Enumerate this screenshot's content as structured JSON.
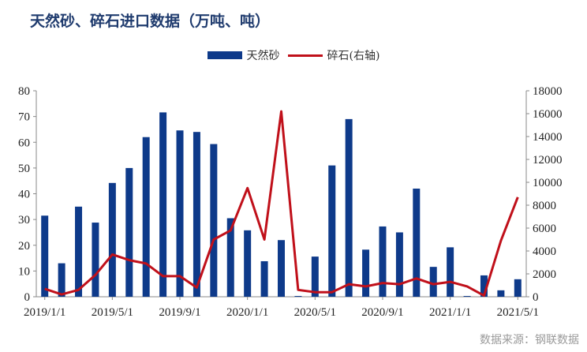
{
  "chart_data": {
    "type": "bar",
    "title": "天然砂、碎石进口数据（万吨、吨）",
    "x_tick_labels": [
      "2019/1/1",
      "2019/5/1",
      "2019/9/1",
      "2020/1/1",
      "2020/5/1",
      "2020/9/1",
      "2021/1/1",
      "2021/5/1"
    ],
    "categories": [
      "2019-01",
      "2019-02",
      "2019-03",
      "2019-04",
      "2019-05",
      "2019-06",
      "2019-07",
      "2019-08",
      "2019-09",
      "2019-10",
      "2019-11",
      "2019-12",
      "2020-01",
      "2020-02",
      "2020-03",
      "2020-04",
      "2020-05",
      "2020-06",
      "2020-07",
      "2020-08",
      "2020-09",
      "2020-10",
      "2020-11",
      "2020-12",
      "2021-01",
      "2021-02",
      "2021-03",
      "2021-04",
      "2021-05"
    ],
    "series": [
      {
        "name": "天然砂",
        "type": "bar",
        "axis": "left",
        "color": "#0e3a8a",
        "values": [
          31.5,
          13,
          35,
          28.8,
          44.2,
          50,
          62,
          71.6,
          64.6,
          64,
          59.3,
          30.5,
          25.8,
          13.8,
          22,
          0.3,
          15.6,
          51,
          69,
          18.3,
          27.3,
          25,
          42,
          11.6,
          19.2,
          0.3,
          8.3,
          2.5,
          6.8
        ]
      },
      {
        "name": "碎石(右轴)",
        "type": "line",
        "axis": "right",
        "color": "#c0101a",
        "values": [
          700,
          200,
          600,
          1900,
          3700,
          3200,
          2900,
          1800,
          1800,
          800,
          5000,
          5800,
          9500,
          5000,
          16200,
          600,
          400,
          400,
          1100,
          900,
          1200,
          1100,
          1600,
          1100,
          1300,
          900,
          100,
          4900,
          8700
        ]
      }
    ],
    "y_left": {
      "min": 0,
      "max": 80,
      "step": 10
    },
    "y_right": {
      "min": 0,
      "max": 18000,
      "step": 2000
    },
    "legend_position": "top-center",
    "grid": false
  },
  "source": "数据来源：钢联数据"
}
